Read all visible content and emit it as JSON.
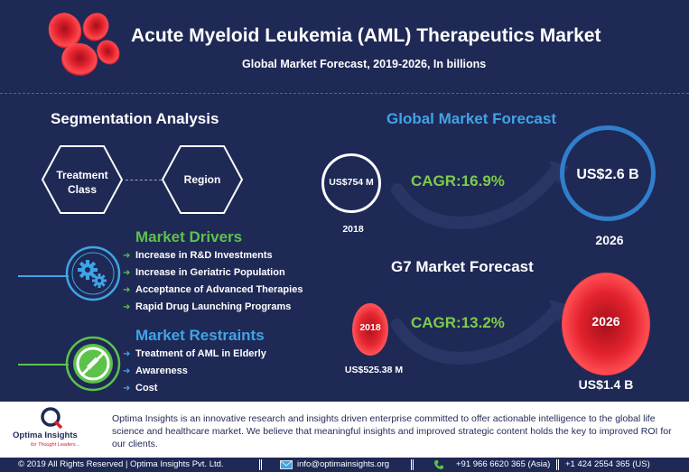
{
  "header": {
    "title": "Acute Myeloid Leukemia (AML) Therapeutics Market",
    "subtitle": "Global Market Forecast, 2019-2026, In billions"
  },
  "segmentation": {
    "title": "Segmentation Analysis",
    "hex1_line1": "Treatment",
    "hex1_line2": "Class",
    "hex2": "Region"
  },
  "drivers": {
    "title": "Market Drivers",
    "items": [
      "Increase in R&D Investments",
      "Increase in Geriatric Population",
      "Acceptance of Advanced Therapies",
      "Rapid Drug Launching Programs"
    ]
  },
  "restraints": {
    "title": "Market Restraints",
    "items": [
      "Treatment of AML in Elderly",
      "Awareness",
      "Cost"
    ]
  },
  "global_forecast": {
    "title": "Global Market Forecast",
    "value_2018": "US$754 M",
    "year_2018": "2018",
    "cagr": "CAGR:16.9%",
    "value_2026": "US$2.6 B",
    "year_2026": "2026"
  },
  "g7_forecast": {
    "title": "G7 Market Forecast",
    "year_2018": "2018",
    "value_2018": "US$525.38 M",
    "cagr": "CAGR:13.2%",
    "year_2026": "2026",
    "value_2026": "US$1.4 B"
  },
  "footer": {
    "logo_name": "Optima Insights",
    "logo_tagline": "for Thought Leaders...",
    "about": "Optima Insights is an innovative research and insights driven enterprise committed to offer actionable intelligence to the global life science and healthcare market. We believe that meaningful insights and improved strategic content holds the key to improved ROI for our clients.",
    "copyright": "© 2019 All Rights Reserved | Optima Insights Pvt. Ltd.",
    "email": "info@optimainsights.org",
    "phone_asia": "+91 966 6620 365  (Asia)",
    "phone_us": "+1 424 2554 365  (US)"
  },
  "colors": {
    "background": "#1f2956",
    "green": "#5dc24a",
    "blue": "#3fa4e6",
    "red": "#d81f2a"
  },
  "icons": {
    "header": "red-blood-cells-icon",
    "drivers": "gears-icon",
    "restraints": "prohibited-syringe-icon",
    "email": "email-icon",
    "phone": "phone-icon"
  }
}
